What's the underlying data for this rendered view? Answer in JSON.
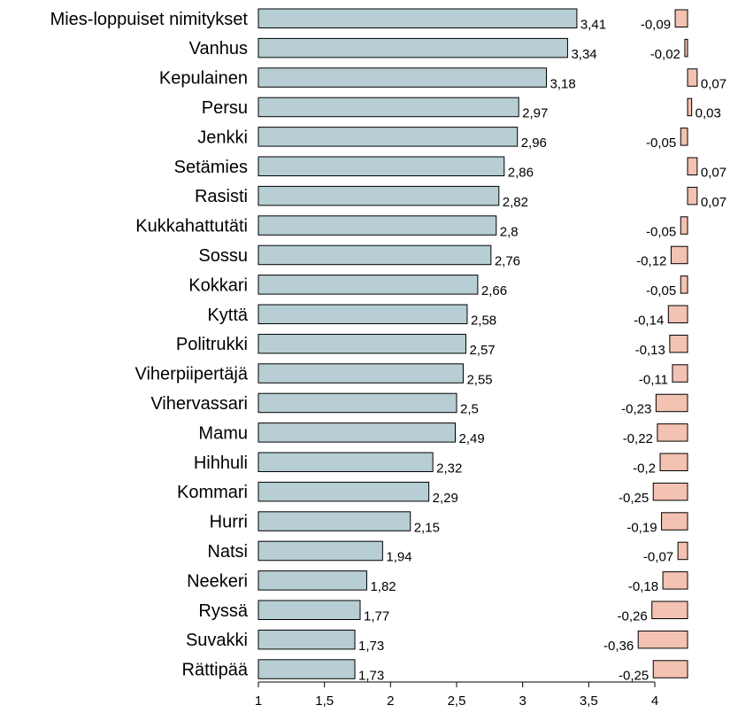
{
  "chart_data": {
    "type": "bar",
    "orientation": "horizontal",
    "categories": [
      "Mies-loppuiset nimitykset",
      "Vanhus",
      "Kepulainen",
      "Persu",
      "Jenkki",
      "Setämies",
      "Rasisti",
      "Kukkahattutäti",
      "Sossu",
      "Kokkari",
      "Kyttä",
      "Politrukki",
      "Viherpiipertäjä",
      "Vihervassari",
      "Mamu",
      "Hihhuli",
      "Kommari",
      "Hurri",
      "Natsi",
      "Neekeri",
      "Ryssä",
      "Suvakki",
      "Rättipää"
    ],
    "series": [
      {
        "values": [
          3.41,
          3.34,
          3.18,
          2.97,
          2.96,
          2.86,
          2.82,
          2.8,
          2.76,
          2.66,
          2.58,
          2.57,
          2.55,
          2.5,
          2.49,
          2.32,
          2.29,
          2.15,
          1.94,
          1.82,
          1.77,
          1.73,
          1.73
        ],
        "labels": [
          "3,41",
          "3,34",
          "3,18",
          "2,97",
          "2,96",
          "2,86",
          "2,82",
          "2,8",
          "2,76",
          "2,66",
          "2,58",
          "2,57",
          "2,55",
          "2,5",
          "2,49",
          "2,32",
          "2,29",
          "2,15",
          "1,94",
          "1,82",
          "1,77",
          "1,73",
          "1,73"
        ],
        "color": "#b6ced4"
      },
      {
        "values": [
          -0.09,
          -0.02,
          0.07,
          0.03,
          -0.05,
          0.07,
          0.07,
          -0.05,
          -0.12,
          -0.05,
          -0.14,
          -0.13,
          -0.11,
          -0.23,
          -0.22,
          -0.2,
          -0.25,
          -0.19,
          -0.07,
          -0.18,
          -0.26,
          -0.36,
          -0.25
        ],
        "labels": [
          "-0,09",
          "-0,02",
          "0,07",
          "0,03",
          "-0,05",
          "0,07",
          "0,07",
          "-0,05",
          "-0,12",
          "-0,05",
          "-0,14",
          "-0,13",
          "-0,11",
          "-0,23",
          "-0,22",
          "-0,2",
          "-0,25",
          "-0,19",
          "-0,07",
          "-0,18",
          "-0,26",
          "-0,36",
          "-0,25"
        ],
        "color": "#f3c2b2"
      }
    ],
    "xlim": [
      1,
      4
    ],
    "xticks": [
      1,
      1.5,
      2,
      2.5,
      3,
      3.5,
      4
    ],
    "xtick_labels": [
      "1",
      "1,5",
      "2",
      "2,5",
      "3",
      "3,5",
      "4"
    ],
    "title": "",
    "xlabel": "",
    "ylabel": "",
    "grid": false,
    "legend": "none"
  }
}
